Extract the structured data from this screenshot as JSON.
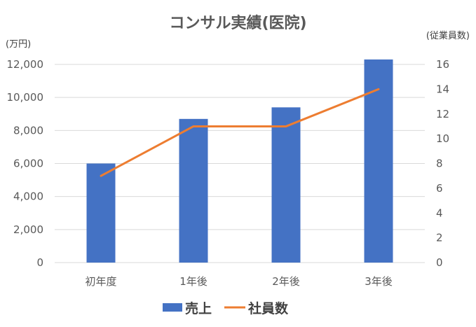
{
  "chart_data": {
    "type": "bar",
    "title": "コンサル実績(医院)",
    "categories": [
      "初年度",
      "1年後",
      "2年後",
      "3年後"
    ],
    "series": [
      {
        "name": "売上",
        "type": "bar",
        "axis": "left",
        "values": [
          6000,
          8700,
          9400,
          12300
        ],
        "color": "#4472C4"
      },
      {
        "name": "社員数",
        "type": "line",
        "axis": "right",
        "values": [
          7,
          11,
          11,
          14
        ],
        "color": "#ED7D31"
      }
    ],
    "ylabel_left": "(万円)",
    "ylabel_right": "(従業員数)",
    "ylim_left": [
      0,
      12000
    ],
    "ylim_right": [
      0,
      16
    ],
    "left_tick_values": [
      0,
      2000,
      4000,
      6000,
      8000,
      10000,
      12000
    ],
    "left_tick_labels": [
      "0",
      "2,000",
      "4,000",
      "6,000",
      "8,000",
      "10,000",
      "12,000"
    ],
    "right_tick_values": [
      0,
      2,
      4,
      6,
      8,
      10,
      12,
      14,
      16
    ],
    "right_tick_labels": [
      "0",
      "2",
      "4",
      "6",
      "8",
      "10",
      "12",
      "14",
      "16"
    ],
    "grid": true,
    "legend_position": "bottom"
  }
}
